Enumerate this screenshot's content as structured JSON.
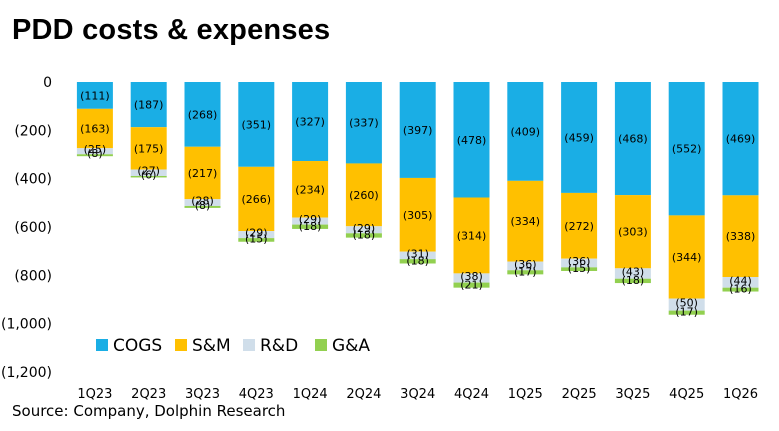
{
  "title": "PDD costs & expenses",
  "source": "Source: Company,  Dolphin Research",
  "colors": {
    "COGS": "#1AAEE5",
    "S&M": "#FFC000",
    "R&D": "#D0DEEA",
    "G&A": "#92D050"
  },
  "chart_data": {
    "type": "bar",
    "stacked": true,
    "categories": [
      "1Q23",
      "2Q23",
      "3Q23",
      "4Q23",
      "1Q24",
      "2Q24",
      "3Q24",
      "4Q24",
      "1Q25",
      "2Q25",
      "3Q25",
      "4Q25",
      "1Q26"
    ],
    "series": [
      {
        "name": "COGS",
        "values": [
          -111,
          -187,
          -268,
          -351,
          -327,
          -337,
          -397,
          -478,
          -409,
          -459,
          -468,
          -552,
          -469
        ]
      },
      {
        "name": "S&M",
        "values": [
          -163,
          -175,
          -217,
          -266,
          -234,
          -260,
          -305,
          -314,
          -334,
          -272,
          -303,
          -344,
          -338
        ]
      },
      {
        "name": "R&D",
        "values": [
          -25,
          -27,
          -28,
          -29,
          -29,
          -29,
          -31,
          -38,
          -36,
          -36,
          -43,
          -50,
          -44
        ]
      },
      {
        "name": "G&A",
        "values": [
          -8,
          -6,
          -8,
          -15,
          -18,
          -18,
          -18,
          -21,
          -17,
          -15,
          -18,
          -17,
          -16
        ]
      }
    ],
    "data_labels": {
      "COGS": [
        "(111)",
        "(187)",
        "(268)",
        "(351)",
        "(327)",
        "(337)",
        "(397)",
        "(478)",
        "(409)",
        "(459)",
        "(468)",
        "(552)",
        "(469)"
      ],
      "S&M": [
        "(163)",
        "(175)",
        "(217)",
        "(266)",
        "(234)",
        "(260)",
        "(305)",
        "(314)",
        "(334)",
        "(272)",
        "(303)",
        "(344)",
        "(338)"
      ],
      "R&D": [
        "(25)",
        "(27)",
        "(28)",
        "(29)",
        "(29)",
        "(29)",
        "(31)",
        "(38)",
        "(36)",
        "(36)",
        "(43)",
        "(50)",
        "(44)"
      ],
      "G&A": [
        "(8)",
        "(6)",
        "(8)",
        "(15)",
        "(18)",
        "(18)",
        "(18)",
        "(21)",
        "(17)",
        "(15)",
        "(18)",
        "(17)",
        "(16)"
      ]
    },
    "ylim": [
      -1200,
      0
    ],
    "yticks": [
      0,
      -200,
      -400,
      -600,
      -800,
      -1000,
      -1200
    ],
    "ytick_labels": [
      "0",
      "(200)",
      "(400)",
      "(600)",
      "(800)",
      "(1,000)",
      "(1,200)"
    ],
    "legend": {
      "position": "bottom-left",
      "entries": [
        "COGS",
        "S&M",
        "R&D",
        "G&A"
      ]
    },
    "grid": false
  }
}
